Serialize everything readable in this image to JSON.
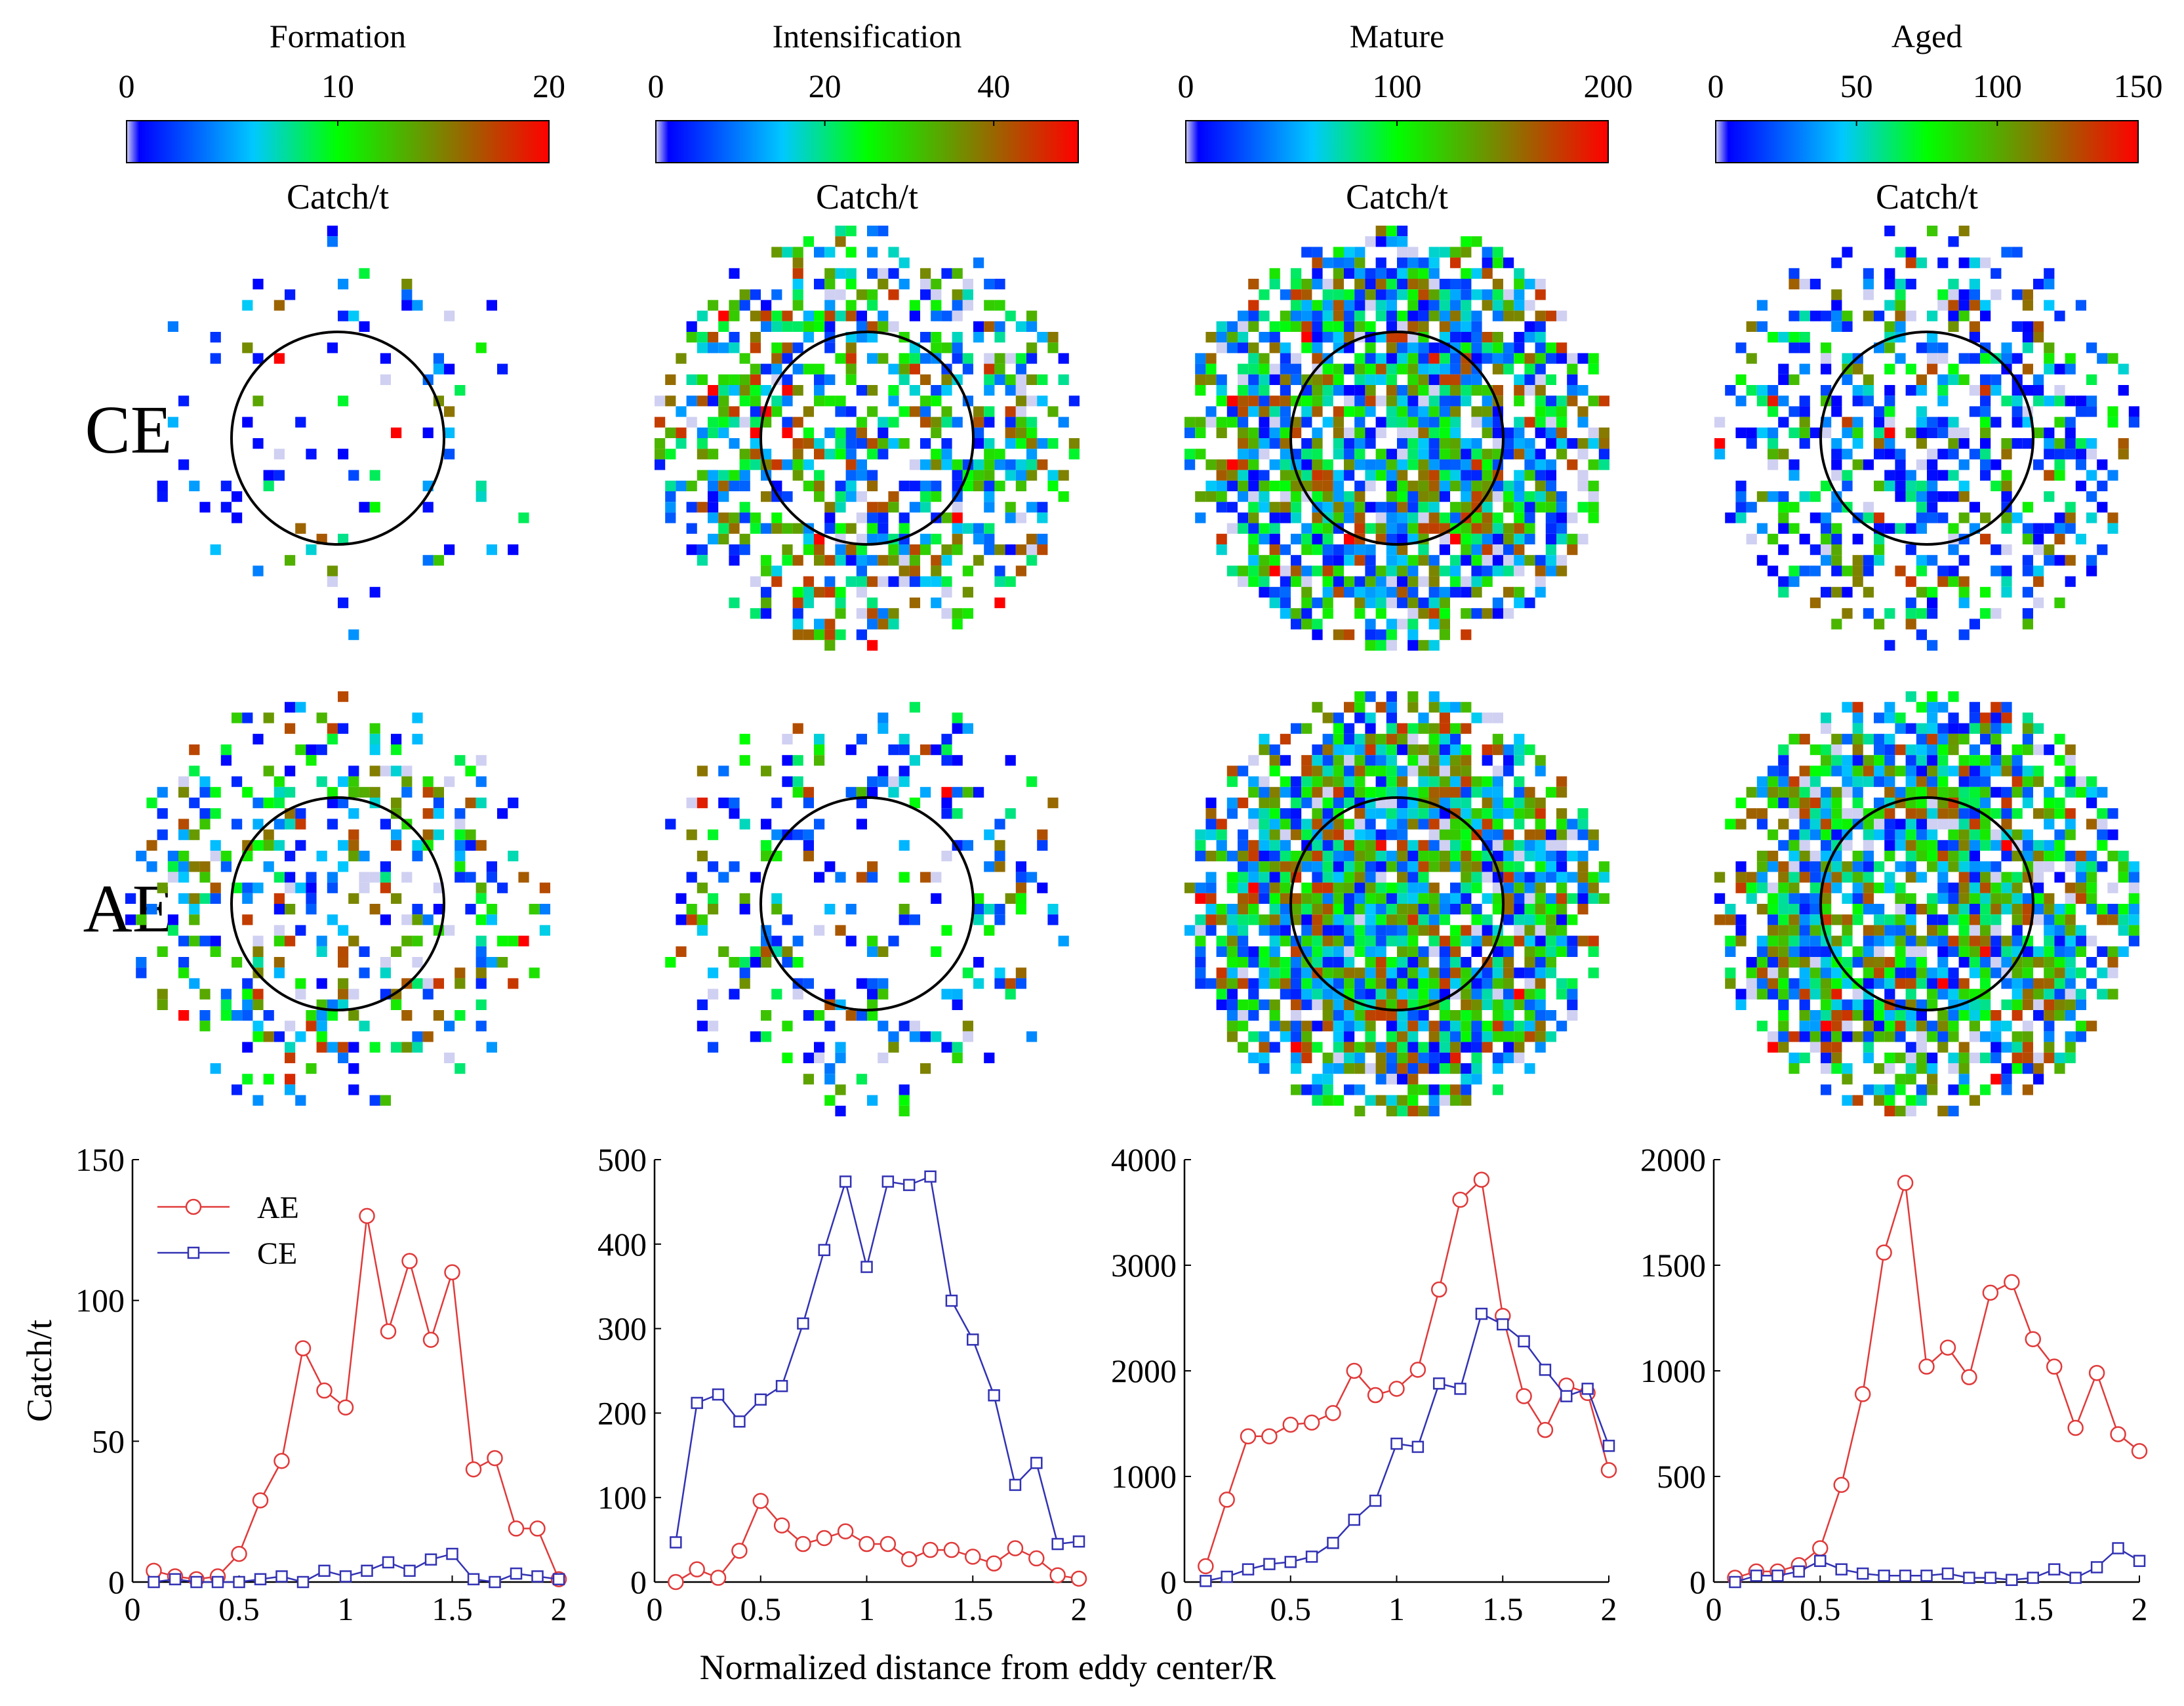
{
  "colorbars": [
    {
      "title": "Formation",
      "ticks": [
        "0",
        "10",
        "20"
      ],
      "tick_values": [
        0,
        10,
        20
      ],
      "max": 20,
      "unit": "Catch/t"
    },
    {
      "title": "Intensification",
      "ticks": [
        "0",
        "20",
        "40"
      ],
      "tick_values": [
        0,
        20,
        40
      ],
      "max": 50,
      "unit": "Catch/t"
    },
    {
      "title": "Mature",
      "ticks": [
        "0",
        "100",
        "200"
      ],
      "tick_values": [
        0,
        100,
        200
      ],
      "max": 200,
      "unit": "Catch/t"
    },
    {
      "title": "Aged",
      "ticks": [
        "0",
        "50",
        "100",
        "150"
      ],
      "tick_values": [
        0,
        50,
        100,
        150
      ],
      "max": 150,
      "unit": "Catch/t"
    }
  ],
  "rows": [
    {
      "label": "CE"
    },
    {
      "label": "AE"
    }
  ],
  "colors": {
    "colormap": [
      "#d0d0f2",
      "#0000ff",
      "#00c8ff",
      "#00e100",
      "#00ff00",
      "#ff0000"
    ],
    "ae_line": "#e03a3a",
    "ce_line": "#3232b4",
    "circle": "#000000"
  },
  "x_axis_label": "Normalized distance from eddy center/R",
  "chart_data": [
    {
      "type": "line",
      "stage": "Formation",
      "ylabel": "Catch/t",
      "xlim": [
        0,
        2
      ],
      "ylim": [
        0,
        150
      ],
      "x_ticks": [
        0,
        0.5,
        1,
        1.5,
        2
      ],
      "y_ticks": [
        0,
        50,
        100,
        150
      ],
      "x": [
        0.1,
        0.2,
        0.3,
        0.4,
        0.5,
        0.6,
        0.7,
        0.8,
        0.9,
        1.0,
        1.1,
        1.2,
        1.3,
        1.4,
        1.5,
        1.6,
        1.7,
        1.8,
        1.9,
        2.0
      ],
      "legend": {
        "placement": "top-left"
      },
      "series": [
        {
          "name": "AE",
          "values": [
            4,
            2,
            1,
            2,
            10,
            29,
            43,
            83,
            68,
            62,
            130,
            89,
            114,
            86,
            110,
            40,
            44,
            19,
            19,
            1
          ]
        },
        {
          "name": "CE",
          "values": [
            0,
            1,
            0,
            0,
            0,
            1,
            2,
            0,
            4,
            2,
            4,
            7,
            4,
            8,
            10,
            1,
            0,
            3,
            2,
            1
          ]
        }
      ]
    },
    {
      "type": "line",
      "stage": "Intensification",
      "xlim": [
        0,
        2
      ],
      "ylim": [
        0,
        500
      ],
      "x_ticks": [
        0,
        0.5,
        1,
        1.5,
        2
      ],
      "y_ticks": [
        0,
        100,
        200,
        300,
        400,
        500
      ],
      "x": [
        0.1,
        0.2,
        0.3,
        0.4,
        0.5,
        0.6,
        0.7,
        0.8,
        0.9,
        1.0,
        1.1,
        1.2,
        1.3,
        1.4,
        1.5,
        1.6,
        1.7,
        1.8,
        1.9,
        2.0
      ],
      "series": [
        {
          "name": "AE",
          "values": [
            0,
            15,
            5,
            37,
            96,
            67,
            45,
            52,
            60,
            45,
            45,
            27,
            38,
            38,
            30,
            22,
            40,
            28,
            8,
            4
          ]
        },
        {
          "name": "CE",
          "values": [
            47,
            212,
            222,
            190,
            216,
            232,
            306,
            393,
            474,
            373,
            474,
            470,
            480,
            333,
            287,
            221,
            115,
            141,
            45,
            48
          ]
        }
      ]
    },
    {
      "type": "line",
      "stage": "Mature",
      "xlim": [
        0,
        2
      ],
      "ylim": [
        0,
        4000
      ],
      "x_ticks": [
        0,
        0.5,
        1,
        1.5,
        2
      ],
      "y_ticks": [
        0,
        1000,
        2000,
        3000,
        4000
      ],
      "x": [
        0.1,
        0.2,
        0.3,
        0.4,
        0.5,
        0.6,
        0.7,
        0.8,
        0.9,
        1.0,
        1.1,
        1.2,
        1.3,
        1.4,
        1.5,
        1.6,
        1.7,
        1.8,
        1.9,
        2.0
      ],
      "series": [
        {
          "name": "AE",
          "values": [
            150,
            780,
            1380,
            1380,
            1490,
            1510,
            1600,
            2000,
            1770,
            1830,
            2010,
            2770,
            3620,
            3810,
            2520,
            1760,
            1440,
            1860,
            1790,
            1060
          ]
        },
        {
          "name": "CE",
          "values": [
            10,
            50,
            120,
            170,
            190,
            240,
            370,
            590,
            770,
            1310,
            1280,
            1880,
            1830,
            2540,
            2440,
            2280,
            2010,
            1760,
            1830,
            1290
          ]
        }
      ]
    },
    {
      "type": "line",
      "stage": "Aged",
      "xlim": [
        0,
        2
      ],
      "ylim": [
        0,
        2000
      ],
      "x_ticks": [
        0,
        0.5,
        1,
        1.5,
        2
      ],
      "y_ticks": [
        0,
        500,
        1000,
        1500,
        2000
      ],
      "x": [
        0.1,
        0.2,
        0.3,
        0.4,
        0.5,
        0.6,
        0.7,
        0.8,
        0.9,
        1.0,
        1.1,
        1.2,
        1.3,
        1.4,
        1.5,
        1.6,
        1.7,
        1.8,
        1.9,
        2.0
      ],
      "series": [
        {
          "name": "AE",
          "values": [
            20,
            50,
            50,
            80,
            160,
            460,
            890,
            1560,
            1890,
            1020,
            1110,
            970,
            1370,
            1420,
            1150,
            1020,
            730,
            990,
            700,
            620
          ]
        },
        {
          "name": "CE",
          "values": [
            0,
            30,
            30,
            50,
            100,
            60,
            40,
            30,
            30,
            30,
            40,
            20,
            20,
            10,
            20,
            60,
            20,
            70,
            160,
            100
          ]
        }
      ]
    }
  ]
}
